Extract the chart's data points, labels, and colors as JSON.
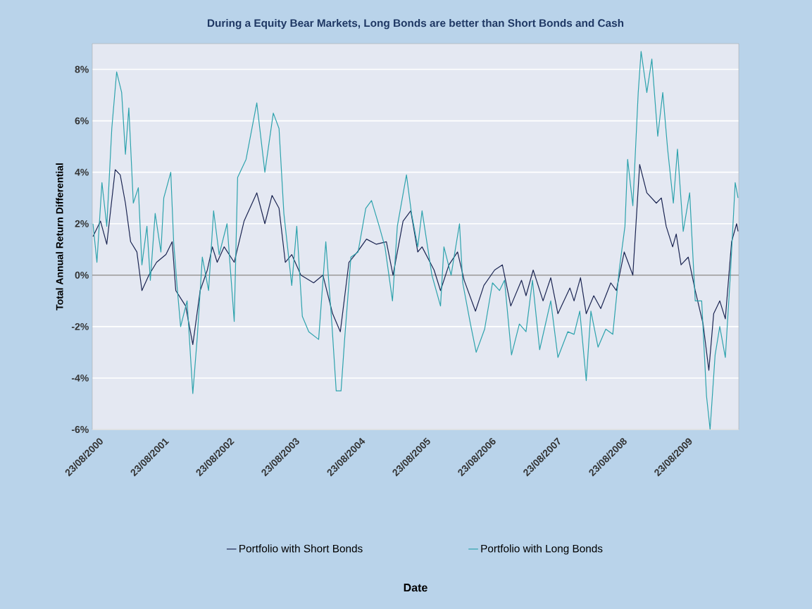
{
  "chart_data": {
    "type": "line",
    "title": "During a Equity Bear Markets, Long Bonds are better than Short Bonds and Cash",
    "annotations": [
      "Date"
    ],
    "ylabel": "Total Annual Return Differential",
    "xlim": [
      "2000-08-01",
      "2010-06-17"
    ],
    "ylim": [
      -6,
      9
    ],
    "xticks": [
      {
        "value": "2000-08-23",
        "label": "23/08/2000"
      },
      {
        "value": "2001-08-23",
        "label": "23/08/2001"
      },
      {
        "value": "2002-08-23",
        "label": "23/08/2002"
      },
      {
        "value": "2003-08-23",
        "label": "23/08/2003"
      },
      {
        "value": "2004-08-23",
        "label": "23/08/2004"
      },
      {
        "value": "2005-08-23",
        "label": "23/08/2005"
      },
      {
        "value": "2006-08-23",
        "label": "23/08/2006"
      },
      {
        "value": "2007-08-23",
        "label": "23/08/2007"
      },
      {
        "value": "2008-08-23",
        "label": "23/08/2008"
      },
      {
        "value": "2009-08-23",
        "label": "23/08/2009"
      }
    ],
    "yticks": [
      {
        "value": -6,
        "label": "-6%"
      },
      {
        "value": -4,
        "label": "-4%"
      },
      {
        "value": -2,
        "label": "-2%"
      },
      {
        "value": 0,
        "label": "0%"
      },
      {
        "value": 2,
        "label": "2%"
      },
      {
        "value": 4,
        "label": "4%"
      },
      {
        "value": 6,
        "label": "6%"
      },
      {
        "value": 8,
        "label": "8%"
      }
    ],
    "grid": "y",
    "legend": "bottom",
    "ref_lines": [
      {
        "axis": "y",
        "value": 0,
        "color": "#808080"
      }
    ],
    "series": [
      {
        "name": "Portfolio with Short Bonds",
        "color": "#1b2552",
        "x": [
          "2000-08-05",
          "2000-09-16",
          "2000-10-21",
          "2000-12-07",
          "2001-01-04",
          "2001-02-02",
          "2001-03-03",
          "2001-04-07",
          "2001-05-05",
          "2001-06-13",
          "2001-07-26",
          "2001-09-16",
          "2001-10-21",
          "2001-11-10",
          "2002-01-04",
          "2002-02-13",
          "2002-03-26",
          "2002-05-05",
          "2002-06-02",
          "2002-06-29",
          "2002-08-07",
          "2002-10-02",
          "2002-11-26",
          "2003-02-05",
          "2003-03-22",
          "2003-05-01",
          "2003-06-09",
          "2003-07-14",
          "2003-08-19",
          "2003-10-09",
          "2003-12-19",
          "2004-02-09",
          "2004-04-03",
          "2004-05-16",
          "2004-07-03",
          "2004-08-19",
          "2004-10-09",
          "2004-12-03",
          "2005-01-28",
          "2005-03-06",
          "2005-05-01",
          "2005-06-13",
          "2005-07-22",
          "2005-08-15",
          "2005-10-21",
          "2005-11-26",
          "2006-01-12",
          "2006-03-01",
          "2006-04-07",
          "2006-06-09",
          "2006-07-26",
          "2006-09-24",
          "2006-11-06",
          "2006-12-23",
          "2007-02-21",
          "2007-03-18",
          "2007-04-27",
          "2007-06-21",
          "2007-08-03",
          "2007-09-12",
          "2007-11-18",
          "2007-12-11",
          "2008-01-16",
          "2008-02-17",
          "2008-03-30",
          "2008-05-08",
          "2008-07-03",
          "2008-08-03",
          "2008-09-16",
          "2008-11-03",
          "2008-12-11",
          "2009-01-20",
          "2009-03-14",
          "2009-04-11",
          "2009-05-08",
          "2009-06-13",
          "2009-07-03",
          "2009-07-30",
          "2009-09-08",
          "2009-10-17",
          "2009-11-30",
          "2010-01-01",
          "2010-01-28",
          "2010-03-03",
          "2010-04-03",
          "2010-05-08",
          "2010-06-05",
          "2010-06-13"
        ],
        "values": [
          1.5,
          2.1,
          1.2,
          4.1,
          3.9,
          2.8,
          1.3,
          0.9,
          -0.6,
          0,
          0.5,
          0.8,
          1.3,
          -0.6,
          -1.2,
          -2.7,
          -0.6,
          0.2,
          1.1,
          0.5,
          1.1,
          0.5,
          2.1,
          3.2,
          2.0,
          3.1,
          2.6,
          0.5,
          0.8,
          0,
          -0.3,
          0,
          -1.5,
          -2.2,
          0.5,
          0.9,
          1.4,
          1.2,
          1.3,
          0,
          2.1,
          2.5,
          0.9,
          1.1,
          0.2,
          -0.6,
          0.4,
          0.9,
          -0.2,
          -1.4,
          -0.4,
          0.2,
          0.4,
          -1.2,
          -0.2,
          -0.8,
          0.2,
          -1.0,
          -0.1,
          -1.5,
          -0.5,
          -1.0,
          -0.1,
          -1.5,
          -0.8,
          -1.3,
          -0.3,
          -0.6,
          0.9,
          0,
          4.3,
          3.2,
          2.8,
          3.0,
          1.9,
          1.1,
          1.6,
          0.4,
          0.7,
          -0.6,
          -1.9,
          -3.7,
          -1.5,
          -1.0,
          -1.7,
          1.3,
          2.0,
          1.7
        ]
      },
      {
        "name": "Portfolio with Long Bonds",
        "color": "#2ea3ad",
        "x": [
          "2000-08-05",
          "2000-08-27",
          "2000-09-24",
          "2000-10-21",
          "2000-11-18",
          "2000-12-15",
          "2001-01-12",
          "2001-02-02",
          "2001-02-21",
          "2001-03-18",
          "2001-04-15",
          "2001-05-05",
          "2001-06-02",
          "2001-06-21",
          "2001-07-18",
          "2001-08-19",
          "2001-09-04",
          "2001-10-13",
          "2001-10-29",
          "2001-11-18",
          "2001-12-07",
          "2002-01-12",
          "2002-02-13",
          "2002-03-10",
          "2002-04-07",
          "2002-05-12",
          "2002-06-09",
          "2002-07-10",
          "2002-08-23",
          "2002-10-02",
          "2002-10-21",
          "2002-12-07",
          "2003-02-05",
          "2003-03-22",
          "2003-05-08",
          "2003-06-09",
          "2003-07-06",
          "2003-08-19",
          "2003-09-16",
          "2003-10-17",
          "2003-11-22",
          "2004-01-16",
          "2004-02-25",
          "2004-03-30",
          "2004-04-23",
          "2004-05-20",
          "2004-06-09",
          "2004-07-14",
          "2004-08-23",
          "2004-10-05",
          "2004-11-06",
          "2004-12-19",
          "2005-01-20",
          "2005-03-03",
          "2005-03-30",
          "2005-05-20",
          "2005-06-17",
          "2005-07-22",
          "2005-08-15",
          "2005-10-09",
          "2005-11-26",
          "2005-12-15",
          "2006-01-24",
          "2006-03-12",
          "2006-03-30",
          "2006-05-12",
          "2006-06-13",
          "2006-07-30",
          "2006-09-12",
          "2006-10-21",
          "2006-11-18",
          "2006-12-27",
          "2007-02-09",
          "2007-03-18",
          "2007-04-23",
          "2007-06-02",
          "2007-08-03",
          "2007-09-12",
          "2007-11-06",
          "2007-12-11",
          "2008-01-12",
          "2008-02-17",
          "2008-03-14",
          "2008-04-23",
          "2008-06-05",
          "2008-07-14",
          "2008-08-19",
          "2008-09-20",
          "2008-10-05",
          "2008-11-03",
          "2008-12-03",
          "2008-12-19",
          "2009-01-20",
          "2009-02-17",
          "2009-03-22",
          "2009-04-19",
          "2009-05-16",
          "2009-06-17",
          "2009-07-10",
          "2009-08-11",
          "2009-09-16",
          "2009-10-17",
          "2009-11-22",
          "2009-12-19",
          "2010-01-08",
          "2010-02-05",
          "2010-03-03",
          "2010-04-03",
          "2010-05-01",
          "2010-05-28",
          "2010-06-13"
        ],
        "values": [
          2.0,
          0.5,
          3.6,
          1.9,
          5.7,
          7.9,
          7.1,
          4.7,
          6.5,
          2.8,
          3.4,
          0.4,
          1.9,
          -0.2,
          2.4,
          0.9,
          3.0,
          4.0,
          1.3,
          -0.5,
          -2.0,
          -1.0,
          -4.6,
          -2.4,
          0.7,
          -0.6,
          2.5,
          0.8,
          2.0,
          -1.8,
          3.8,
          4.5,
          6.7,
          4.0,
          6.3,
          5.7,
          2.4,
          -0.4,
          1.9,
          -1.6,
          -2.2,
          -2.5,
          1.3,
          -1.9,
          -4.5,
          -4.5,
          -2.5,
          0.7,
          0.9,
          2.6,
          2.9,
          1.9,
          1.1,
          -1.0,
          1.9,
          3.9,
          2.4,
          1.1,
          2.5,
          0,
          -1.2,
          1.1,
          0,
          2.0,
          -0.3,
          -1.9,
          -3.0,
          -2.1,
          -0.3,
          -0.6,
          -0.2,
          -3.1,
          -1.9,
          -2.2,
          -0.2,
          -2.9,
          -1.0,
          -3.2,
          -2.2,
          -2.3,
          -1.4,
          -4.1,
          -1.4,
          -2.8,
          -2.1,
          -2.3,
          0.2,
          1.9,
          4.5,
          2.7,
          7.1,
          8.7,
          7.1,
          8.4,
          5.4,
          7.1,
          4.9,
          2.8,
          4.9,
          1.7,
          3.2,
          -1.0,
          -1.0,
          -4.7,
          -6.0,
          -3.1,
          -2.0,
          -3.2,
          0,
          3.6,
          3.0
        ]
      }
    ]
  }
}
